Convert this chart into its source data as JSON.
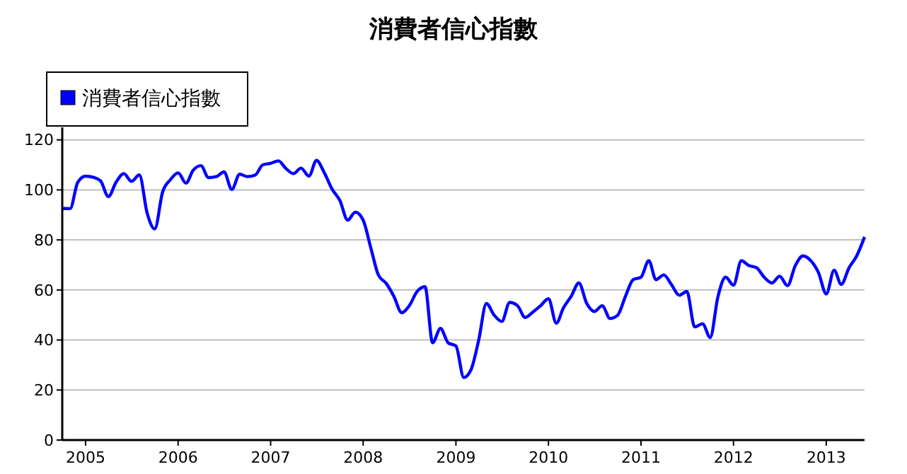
{
  "chart_data": {
    "type": "line",
    "title": "消費者信心指數",
    "x": [
      "2004-10",
      "2004-11",
      "2004-12",
      "2005-01",
      "2005-02",
      "2005-03",
      "2005-04",
      "2005-05",
      "2005-06",
      "2005-07",
      "2005-08",
      "2005-09",
      "2005-10",
      "2005-11",
      "2005-12",
      "2006-01",
      "2006-02",
      "2006-03",
      "2006-04",
      "2006-05",
      "2006-06",
      "2006-07",
      "2006-08",
      "2006-09",
      "2006-10",
      "2006-11",
      "2006-12",
      "2007-01",
      "2007-02",
      "2007-03",
      "2007-04",
      "2007-05",
      "2007-06",
      "2007-07",
      "2007-08",
      "2007-09",
      "2007-10",
      "2007-11",
      "2007-12",
      "2008-01",
      "2008-02",
      "2008-03",
      "2008-04",
      "2008-05",
      "2008-06",
      "2008-07",
      "2008-08",
      "2008-09",
      "2008-10",
      "2008-11",
      "2008-12",
      "2009-01",
      "2009-02",
      "2009-03",
      "2009-04",
      "2009-05",
      "2009-06",
      "2009-07",
      "2009-08",
      "2009-09",
      "2009-10",
      "2009-11",
      "2009-12",
      "2010-01",
      "2010-02",
      "2010-03",
      "2010-04",
      "2010-05",
      "2010-06",
      "2010-07",
      "2010-08",
      "2010-09",
      "2010-10",
      "2010-11",
      "2010-12",
      "2011-01",
      "2011-02",
      "2011-03",
      "2011-04",
      "2011-05",
      "2011-06",
      "2011-07",
      "2011-08",
      "2011-09",
      "2011-10",
      "2011-11",
      "2011-12",
      "2012-01",
      "2012-02",
      "2012-03",
      "2012-04",
      "2012-05",
      "2012-06",
      "2012-07",
      "2012-08",
      "2012-09",
      "2012-10",
      "2012-11",
      "2012-12",
      "2013-01",
      "2013-02",
      "2013-03",
      "2013-04",
      "2013-05",
      "2013-06"
    ],
    "series": [
      {
        "name": "消費者信心指數",
        "color": "#0000ff",
        "values": [
          92.6,
          92.5,
          103,
          105.5,
          105,
          103.6,
          97.3,
          103,
          106.5,
          103.4,
          106,
          90.7,
          84.4,
          99.2,
          104,
          106.8,
          102.7,
          107.8,
          109.7,
          104.9,
          105.3,
          107.2,
          100.2,
          106.3,
          105.3,
          105.9,
          110,
          110.6,
          111.6,
          108.7,
          106.5,
          108.7,
          105.5,
          111.8,
          106.8,
          100.2,
          95.8,
          87.9,
          91.1,
          87.9,
          76.5,
          66,
          62.6,
          57.5,
          50.9,
          53.7,
          59.4,
          61.3,
          38.9,
          44.6,
          38.9,
          37.6,
          25,
          28,
          40,
          54.6,
          49.9,
          47.4,
          55,
          53.7,
          49,
          51.2,
          53.7,
          56.5,
          46.7,
          52.8,
          57.5,
          62.8,
          54.6,
          51.4,
          53.7,
          48.6,
          49.9,
          57.5,
          64.1,
          65.1,
          71.7,
          64.1,
          66,
          62.2,
          57.9,
          59.4,
          45.2,
          46.5,
          41,
          57.5,
          65.1,
          61.9,
          71.7,
          69.8,
          68.9,
          65.1,
          62.8,
          65.5,
          61.7,
          69.8,
          73.6,
          71.7,
          67,
          58.4,
          67.9,
          62.2,
          68.9,
          73.6,
          81.2
        ]
      }
    ],
    "xlim": [
      "2004-10",
      "2013-06"
    ],
    "xticks": [
      "2005",
      "2006",
      "2007",
      "2008",
      "2009",
      "2010",
      "2011",
      "2012",
      "2013"
    ],
    "ylim": [
      0,
      125
    ],
    "yticks": [
      0,
      20,
      40,
      60,
      80,
      100,
      120
    ],
    "grid": "y",
    "legend": "top left",
    "marker": "none",
    "line_style": "solid"
  }
}
